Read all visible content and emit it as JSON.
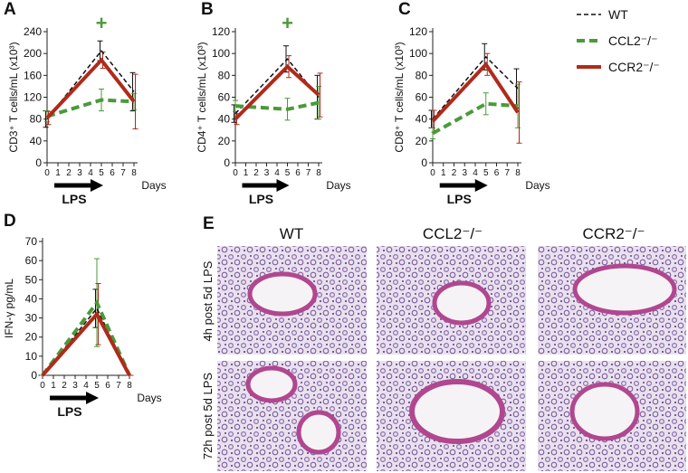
{
  "chart_data": [
    {
      "type": "line",
      "label": "A",
      "ylabel": "CD3⁺ T cells/mL (x10³)",
      "xlabel": "Days",
      "arrow_label": "LPS",
      "annotation": "+",
      "annotation_color": "#4a9a3a",
      "x": [
        0,
        5,
        8
      ],
      "xlim": [
        0,
        8
      ],
      "xticks": [
        0,
        1,
        2,
        3,
        4,
        5,
        6,
        7,
        8
      ],
      "ylim": [
        0,
        240
      ],
      "yticks": [
        0,
        40,
        80,
        120,
        160,
        200,
        240
      ],
      "series": [
        {
          "color": "#111111",
          "style": "dashed",
          "line_width": 1.5,
          "values": [
            80,
            205,
            130
          ],
          "errors": [
            15,
            18,
            35
          ]
        },
        {
          "color": "#4a9a3a",
          "style": "dashed",
          "line_width": 4,
          "values": [
            85,
            115,
            112
          ],
          "errors": [
            10,
            20,
            15
          ]
        },
        {
          "color": "#b02a1a",
          "style": "solid",
          "line_width": 4,
          "values": [
            82,
            188,
            112
          ],
          "errors": [
            12,
            15,
            50
          ]
        }
      ]
    },
    {
      "type": "line",
      "label": "B",
      "ylabel": "CD4⁺ T cells/mL (x10³)",
      "xlabel": "Days",
      "arrow_label": "LPS",
      "annotation": "+",
      "annotation_color": "#4a9a3a",
      "x": [
        0,
        5,
        8
      ],
      "xlim": [
        0,
        8
      ],
      "xticks": [
        0,
        1,
        2,
        3,
        4,
        5,
        6,
        7,
        8
      ],
      "ylim": [
        0,
        120
      ],
      "yticks": [
        0,
        20,
        40,
        60,
        80,
        100,
        120
      ],
      "series": [
        {
          "color": "#111111",
          "style": "dashed",
          "line_width": 1.5,
          "values": [
            45,
            95,
            60
          ],
          "errors": [
            8,
            12,
            20
          ]
        },
        {
          "color": "#4a9a3a",
          "style": "dashed",
          "line_width": 4,
          "values": [
            52,
            49,
            55
          ],
          "errors": [
            5,
            10,
            15
          ]
        },
        {
          "color": "#b02a1a",
          "style": "solid",
          "line_width": 4,
          "values": [
            40,
            88,
            62
          ],
          "errors": [
            5,
            10,
            20
          ]
        }
      ]
    },
    {
      "type": "line",
      "label": "C",
      "ylabel": "CD8⁺ T cells/mL (x10³)",
      "xlabel": "Days",
      "arrow_label": "LPS",
      "x": [
        0,
        5,
        8
      ],
      "xlim": [
        0,
        8
      ],
      "xticks": [
        0,
        1,
        2,
        3,
        4,
        5,
        6,
        7,
        8
      ],
      "ylim": [
        0,
        120
      ],
      "yticks": [
        0,
        20,
        40,
        60,
        80,
        100,
        120
      ],
      "series": [
        {
          "name": "WT",
          "color": "#111111",
          "style": "dashed",
          "line_width": 1.5,
          "values": [
            40,
            97,
            68
          ],
          "errors": [
            8,
            12,
            18
          ]
        },
        {
          "name": "CCL2⁻/⁻",
          "color": "#4a9a3a",
          "style": "dashed",
          "line_width": 4,
          "values": [
            27,
            54,
            52
          ],
          "errors": [
            5,
            10,
            20
          ]
        },
        {
          "name": "CCR2⁻/⁻",
          "color": "#b02a1a",
          "style": "solid",
          "line_width": 4,
          "values": [
            38,
            90,
            46
          ],
          "errors": [
            10,
            10,
            28
          ]
        }
      ]
    },
    {
      "type": "line",
      "label": "D",
      "ylabel": "IFN-γ pg/mL",
      "xlabel": "Days",
      "arrow_label": "LPS",
      "x": [
        0,
        5,
        8
      ],
      "xlim": [
        0,
        8
      ],
      "xticks": [
        0,
        1,
        2,
        3,
        4,
        5,
        6,
        7,
        8
      ],
      "ylim": [
        0,
        70
      ],
      "yticks": [
        0,
        10,
        20,
        30,
        40,
        50,
        60,
        70
      ],
      "series": [
        {
          "color": "#111111",
          "style": "dashed",
          "line_width": 1.5,
          "values": [
            0,
            35,
            0
          ],
          "errors": [
            0,
            10,
            0
          ]
        },
        {
          "color": "#4a9a3a",
          "style": "dashed",
          "line_width": 4,
          "values": [
            0,
            38,
            0
          ],
          "errors": [
            0,
            23,
            0
          ]
        },
        {
          "color": "#b02a1a",
          "style": "solid",
          "line_width": 4,
          "values": [
            0,
            32,
            0
          ],
          "errors": [
            0,
            16,
            0
          ]
        }
      ]
    }
  ],
  "histology": {
    "label": "E",
    "columns": [
      "WT",
      "CCL2⁻/⁻",
      "CCR2⁻/⁻"
    ],
    "rows": [
      "4h post 5d LPS",
      "72h post 5d LPS"
    ]
  }
}
